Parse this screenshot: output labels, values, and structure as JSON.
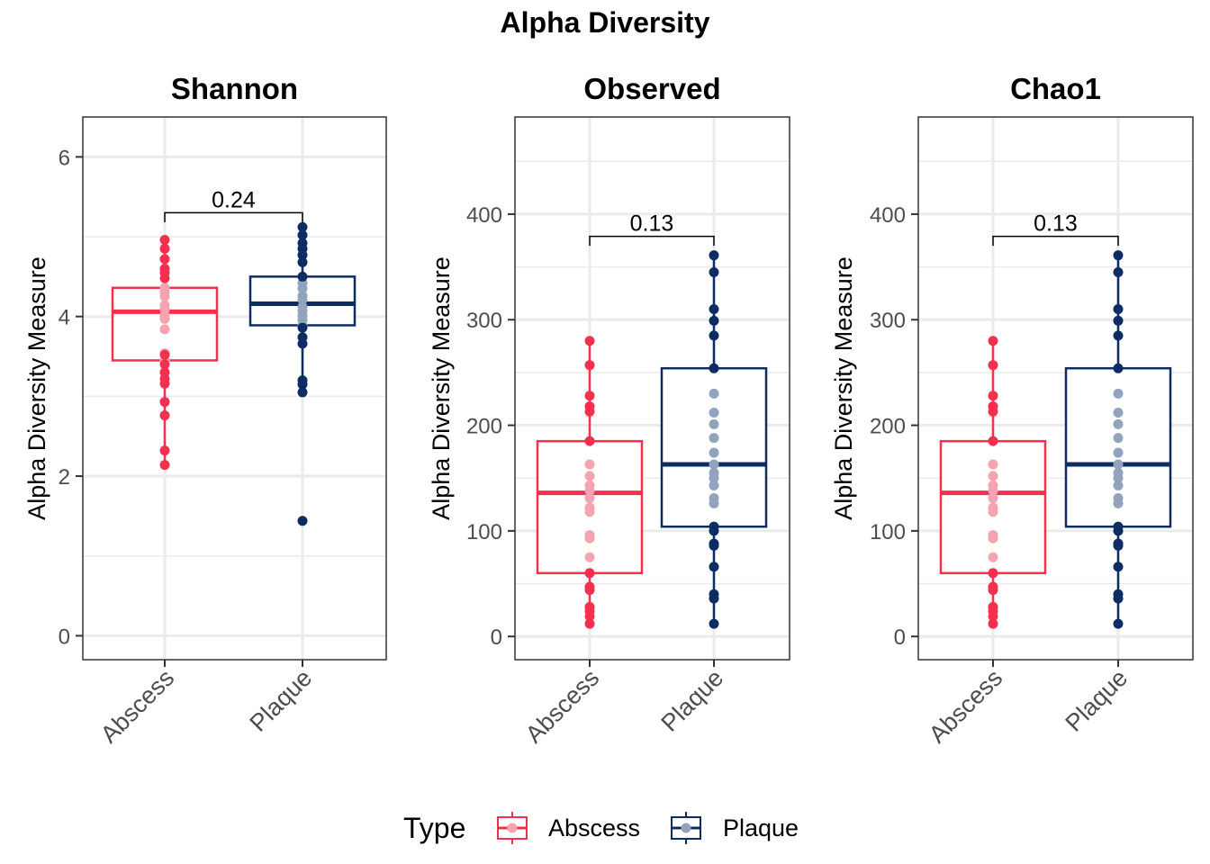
{
  "title": "Alpha Diversity",
  "colors": {
    "Abscess": "#f5304f",
    "Plaque": "#0c2c63",
    "Abscess_light": "#f5a3b1",
    "Plaque_light": "#93a2bd",
    "grid": "#ebebeb",
    "frame": "#333333"
  },
  "legend": {
    "title": "Type",
    "items": [
      "Abscess",
      "Plaque"
    ],
    "position": "bottom"
  },
  "chart_data": [
    {
      "type": "box",
      "title": "Shannon",
      "xlabel": "",
      "ylabel": "Alpha Diversity Measure",
      "categories": [
        "Abscess",
        "Plaque"
      ],
      "ylim": [
        -0.3,
        6.5
      ],
      "yticks": [
        0,
        2,
        4,
        6
      ],
      "grid": true,
      "pvalue": {
        "label": "0.24",
        "y": 5.3,
        "tip": 5.18
      },
      "series": [
        {
          "name": "Abscess",
          "box": {
            "q1": 3.45,
            "median": 4.06,
            "q3": 4.36,
            "whisker_low": 2.14,
            "whisker_high": 4.96
          },
          "points_outer": [
            4.96,
            4.85,
            4.72,
            4.6,
            4.55,
            4.48,
            3.52,
            3.4,
            3.3,
            3.22,
            3.16,
            2.93,
            2.76,
            2.32,
            2.14
          ],
          "points_inner": [
            4.36,
            4.3,
            4.25,
            4.14,
            4.09,
            4.01,
            3.97,
            3.84,
            3.54,
            3.45
          ]
        },
        {
          "name": "Plaque",
          "box": {
            "q1": 3.89,
            "median": 4.16,
            "q3": 4.5,
            "whisker_low": 3.05,
            "whisker_high": 5.12
          },
          "points_outer": [
            5.12,
            5.02,
            4.92,
            4.85,
            4.77,
            4.68,
            4.5,
            3.86,
            3.74,
            3.66,
            3.2,
            3.15,
            3.05,
            1.44
          ],
          "points_inner": [
            4.42,
            4.35,
            4.26,
            4.21,
            4.12,
            4.07,
            4.01,
            3.96,
            3.89
          ]
        }
      ]
    },
    {
      "type": "box",
      "title": "Observed",
      "xlabel": "",
      "ylabel": "Alpha Diversity Measure",
      "categories": [
        "Abscess",
        "Plaque"
      ],
      "ylim": [
        -22,
        492
      ],
      "yticks": [
        0,
        100,
        200,
        300,
        400
      ],
      "grid": true,
      "pvalue": {
        "label": "0.13",
        "y": 379,
        "tip": 370
      },
      "series": [
        {
          "name": "Abscess",
          "box": {
            "q1": 60,
            "median": 136,
            "q3": 185,
            "whisker_low": 12,
            "whisker_high": 280
          },
          "points_outer": [
            280,
            257,
            228,
            218,
            213,
            185,
            60,
            47,
            44,
            28,
            24,
            19,
            12
          ],
          "points_inner": [
            163,
            152,
            143,
            138,
            131,
            122,
            118,
            96,
            93,
            75
          ]
        },
        {
          "name": "Plaque",
          "box": {
            "q1": 104,
            "median": 163,
            "q3": 254,
            "whisker_low": 12,
            "whisker_high": 361
          },
          "points_outer": [
            361,
            345,
            310,
            299,
            285,
            254,
            104,
            100,
            88,
            86,
            66,
            40,
            36,
            12
          ],
          "points_inner": [
            230,
            212,
            201,
            188,
            174,
            163,
            155,
            150,
            143,
            131,
            126
          ]
        }
      ]
    },
    {
      "type": "box",
      "title": "Chao1",
      "xlabel": "",
      "ylabel": "Alpha Diversity Measure",
      "categories": [
        "Abscess",
        "Plaque"
      ],
      "ylim": [
        -22,
        492
      ],
      "yticks": [
        0,
        100,
        200,
        300,
        400
      ],
      "grid": true,
      "pvalue": {
        "label": "0.13",
        "y": 379,
        "tip": 370
      },
      "series": [
        {
          "name": "Abscess",
          "box": {
            "q1": 60,
            "median": 136,
            "q3": 185,
            "whisker_low": 12,
            "whisker_high": 280
          },
          "points_outer": [
            280,
            257,
            228,
            218,
            213,
            185,
            60,
            47,
            44,
            28,
            24,
            19,
            12
          ],
          "points_inner": [
            163,
            152,
            143,
            138,
            131,
            122,
            118,
            96,
            93,
            75
          ]
        },
        {
          "name": "Plaque",
          "box": {
            "q1": 104,
            "median": 163,
            "q3": 254,
            "whisker_low": 12,
            "whisker_high": 361
          },
          "points_outer": [
            361,
            345,
            310,
            299,
            285,
            254,
            104,
            100,
            88,
            86,
            66,
            40,
            36,
            12
          ],
          "points_inner": [
            230,
            212,
            201,
            188,
            174,
            163,
            155,
            150,
            143,
            131,
            126
          ]
        }
      ]
    }
  ]
}
